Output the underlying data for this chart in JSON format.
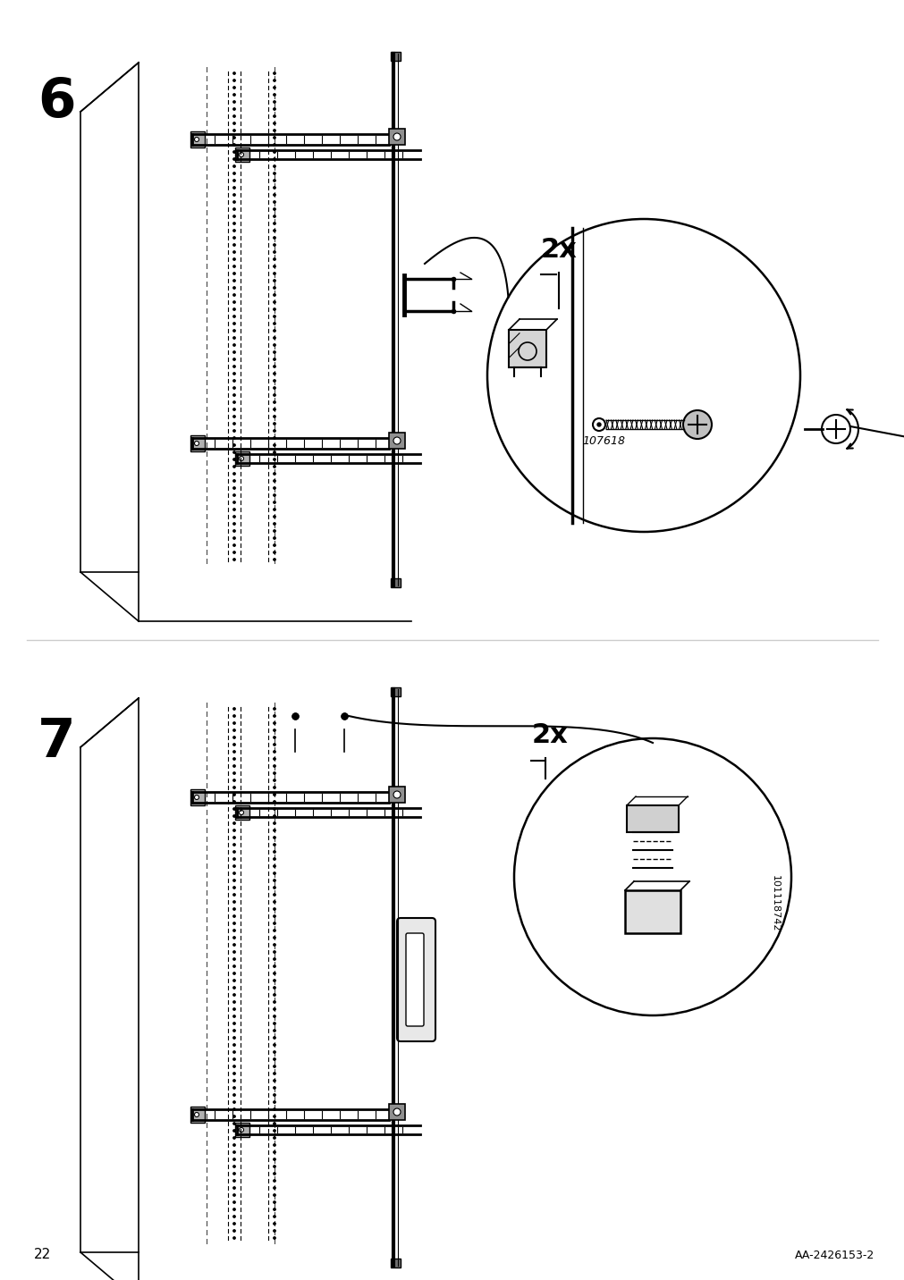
{
  "page_number": "22",
  "doc_code": "AA-2426153-2",
  "step6_number": "6",
  "step7_number": "7",
  "part_number_step6": "107618",
  "part_number_step7": "101118742",
  "bg_color": "#ffffff",
  "line_color": "#000000",
  "gray1": "#d8d8d8",
  "gray2": "#a0a0a0",
  "gray3": "#606060"
}
